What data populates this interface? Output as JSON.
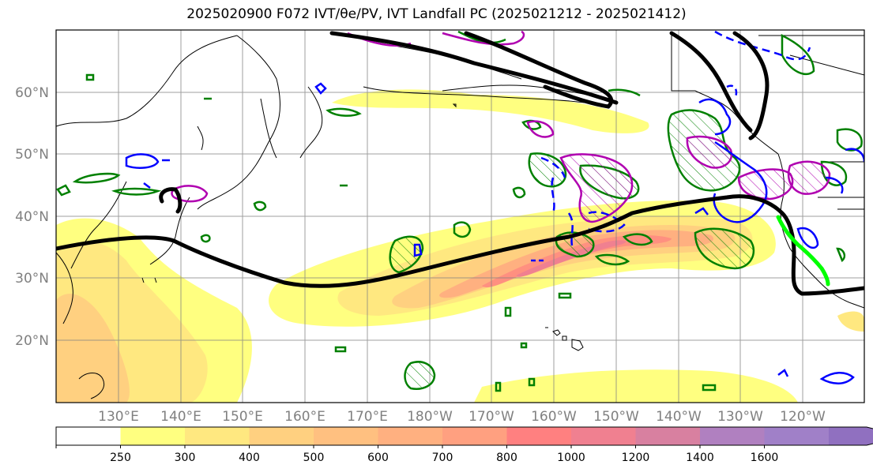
{
  "title": "2025020900 F072 IVT/θe/PV, IVT Landfall PC (2025021212 - 2025021412)",
  "lat_labels": [
    "60°N",
    "50°N",
    "40°N",
    "30°N",
    "20°N"
  ],
  "lon_labels": [
    "130°E",
    "140°E",
    "150°E",
    "160°E",
    "170°E",
    "180°W",
    "170°W",
    "160°W",
    "150°W",
    "140°W",
    "130°W",
    "120°W"
  ],
  "colorbar": {
    "ticks": [
      "250",
      "300",
      "400",
      "500",
      "600",
      "700",
      "800",
      "1000",
      "1200",
      "1400",
      "1600"
    ],
    "colors": [
      "#ffffff",
      "#ffff80",
      "#ffe880",
      "#ffd080",
      "#ffc080",
      "#ffb080",
      "#ffa080",
      "#ff8080",
      "#f08090",
      "#d880a0",
      "#b080c0",
      "#a080c8",
      "#9070c0"
    ],
    "extend": "max"
  },
  "layers": {
    "ivt_fill": "IVT shading (yellow–red)",
    "theta_e_contours": "green",
    "pv_contours": "blue",
    "pv_hatched": "magenta",
    "jet_line": "black",
    "landfall_track": "lime"
  },
  "map_colors": {
    "coast": "#000000",
    "grid": "#808080",
    "jet": "#000000",
    "green": "#008000",
    "blue": "#0000ff",
    "magenta": "#b000b0",
    "lime": "#00ff00"
  }
}
